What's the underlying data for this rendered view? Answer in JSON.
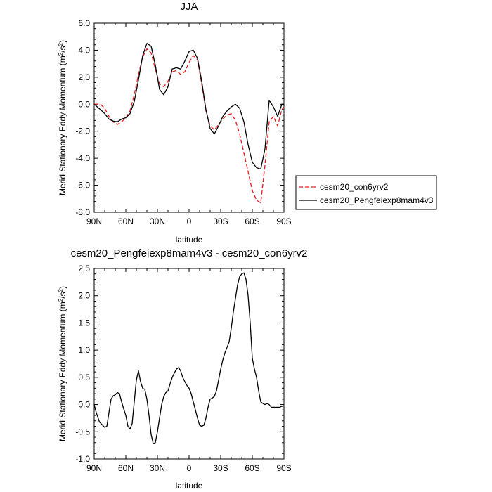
{
  "chart_data": [
    {
      "type": "line",
      "title": "JJA",
      "xlabel": "latitude",
      "ylabel": "Merid Stationary Eddy Momentum (m²/s²)",
      "x_direction": "north-to-south",
      "xlim": [
        90,
        -90
      ],
      "ylim": [
        -8,
        6
      ],
      "xticks": [
        90,
        60,
        30,
        0,
        -30,
        -60,
        -90
      ],
      "xtick_labels": [
        "90N",
        "60N",
        "30N",
        "0",
        "30S",
        "60S",
        "90S"
      ],
      "yticks": [
        -8,
        -6,
        -4,
        -2,
        0,
        2,
        4,
        6
      ],
      "ytick_labels": [
        "-8.0",
        "-6.0",
        "-4.0",
        "-2.0",
        "0.0",
        "2.0",
        "4.0",
        "6.0"
      ],
      "legend_position": "right",
      "series": [
        {
          "name": "cesm20_con6yrv2",
          "color": "#e41a1c",
          "dash": "dashed",
          "x": [
            90,
            84,
            80,
            76,
            72,
            68,
            64,
            60,
            56,
            52,
            48,
            44,
            40,
            36,
            32,
            28,
            24,
            20,
            16,
            12,
            8,
            4,
            0,
            -4,
            -8,
            -12,
            -16,
            -20,
            -24,
            -28,
            -32,
            -36,
            -40,
            -44,
            -48,
            -52,
            -56,
            -60,
            -64,
            -68,
            -72,
            -76,
            -80,
            -84,
            -88,
            -90
          ],
          "y": [
            0.0,
            0.0,
            -0.3,
            -0.9,
            -1.3,
            -1.5,
            -1.3,
            -1.0,
            -0.5,
            0.7,
            2.2,
            3.5,
            4.1,
            3.8,
            2.6,
            1.5,
            1.3,
            1.7,
            2.4,
            2.5,
            2.2,
            2.4,
            3.1,
            3.6,
            3.3,
            1.5,
            -0.5,
            -1.6,
            -1.9,
            -1.5,
            -1.1,
            -0.8,
            -0.7,
            -1.2,
            -2.2,
            -3.6,
            -5.0,
            -6.4,
            -7.1,
            -7.3,
            -4.5,
            -1.3,
            -0.9,
            -1.6,
            -0.4,
            -0.2
          ]
        },
        {
          "name": "cesm20_Pengfeiexp8mam4v3",
          "color": "#000000",
          "dash": "solid",
          "x": [
            90,
            84,
            80,
            76,
            72,
            68,
            64,
            60,
            56,
            52,
            48,
            44,
            40,
            36,
            32,
            28,
            24,
            20,
            16,
            12,
            8,
            4,
            0,
            -4,
            -8,
            -12,
            -16,
            -20,
            -24,
            -28,
            -32,
            -36,
            -40,
            -44,
            -48,
            -52,
            -56,
            -60,
            -64,
            -68,
            -72,
            -76,
            -80,
            -84,
            -88,
            -90
          ],
          "y": [
            0.0,
            -0.4,
            -0.7,
            -1.1,
            -1.25,
            -1.3,
            -1.1,
            -1.0,
            -0.7,
            0.2,
            1.8,
            3.6,
            4.5,
            4.3,
            2.9,
            1.1,
            0.7,
            1.3,
            2.6,
            2.7,
            2.6,
            3.2,
            3.9,
            4.0,
            3.4,
            1.7,
            -0.4,
            -1.8,
            -2.2,
            -1.6,
            -0.9,
            -0.5,
            -0.2,
            0.0,
            -0.3,
            -1.3,
            -3.0,
            -4.3,
            -4.7,
            -4.8,
            -3.3,
            0.3,
            -0.2,
            -0.9,
            0.0,
            0.0
          ]
        }
      ]
    },
    {
      "type": "line",
      "title": "cesm20_Pengfeiexp8mam4v3 - cesm20_con6yrv2",
      "xlabel": "latitude",
      "ylabel": "Merid Stationary Eddy Momentum (m²/s²)",
      "x_direction": "north-to-south",
      "xlim": [
        90,
        -90
      ],
      "ylim": [
        -1.0,
        2.5
      ],
      "xticks": [
        90,
        60,
        30,
        0,
        -30,
        -60,
        -90
      ],
      "xtick_labels": [
        "90N",
        "60N",
        "30N",
        "0",
        "30S",
        "60S",
        "90S"
      ],
      "yticks": [
        -1.0,
        -0.5,
        0.0,
        0.5,
        1.0,
        1.5,
        2.0,
        2.5
      ],
      "ytick_labels": [
        "-1.0",
        "-0.5",
        "0.0",
        "0.5",
        "1.0",
        "1.5",
        "2.0",
        "2.5"
      ],
      "series": [
        {
          "color": "#000000",
          "dash": "solid",
          "x": [
            90,
            88,
            85,
            82,
            80,
            78,
            76,
            74,
            72,
            70,
            68,
            66,
            64,
            62,
            60,
            58,
            56,
            54,
            52,
            50,
            48,
            46,
            44,
            42,
            40,
            38,
            36,
            34,
            32,
            30,
            28,
            26,
            24,
            22,
            20,
            18,
            16,
            14,
            12,
            10,
            8,
            6,
            4,
            2,
            0,
            -2,
            -4,
            -6,
            -8,
            -10,
            -12,
            -14,
            -16,
            -18,
            -20,
            -22,
            -24,
            -26,
            -28,
            -30,
            -32,
            -34,
            -36,
            -38,
            -40,
            -42,
            -44,
            -46,
            -48,
            -50,
            -52,
            -54,
            -56,
            -58,
            -60,
            -62,
            -64,
            -66,
            -68,
            -70,
            -72,
            -74,
            -76,
            -78,
            -80,
            -82,
            -84,
            -86,
            -88,
            -90
          ],
          "y": [
            0.0,
            -0.15,
            -0.32,
            -0.38,
            -0.42,
            -0.4,
            -0.15,
            0.1,
            0.16,
            0.18,
            0.22,
            0.2,
            0.05,
            -0.08,
            -0.2,
            -0.4,
            -0.45,
            -0.35,
            0.05,
            0.45,
            0.62,
            0.42,
            0.3,
            0.28,
            0.1,
            -0.2,
            -0.55,
            -0.72,
            -0.7,
            -0.5,
            -0.25,
            0.0,
            0.15,
            0.22,
            0.25,
            0.38,
            0.5,
            0.58,
            0.65,
            0.68,
            0.62,
            0.5,
            0.42,
            0.35,
            0.3,
            0.2,
            0.05,
            -0.1,
            -0.25,
            -0.38,
            -0.4,
            -0.38,
            -0.25,
            -0.05,
            0.1,
            0.12,
            0.15,
            0.25,
            0.45,
            0.65,
            0.82,
            0.95,
            1.05,
            1.15,
            1.4,
            1.7,
            1.95,
            2.2,
            2.35,
            2.4,
            2.42,
            2.3,
            2.0,
            1.5,
            0.85,
            0.65,
            0.5,
            0.25,
            0.05,
            0.02,
            0.0,
            0.02,
            0.0,
            -0.05,
            -0.05,
            -0.05,
            -0.05,
            -0.05,
            -0.03,
            -0.03
          ]
        }
      ]
    }
  ]
}
